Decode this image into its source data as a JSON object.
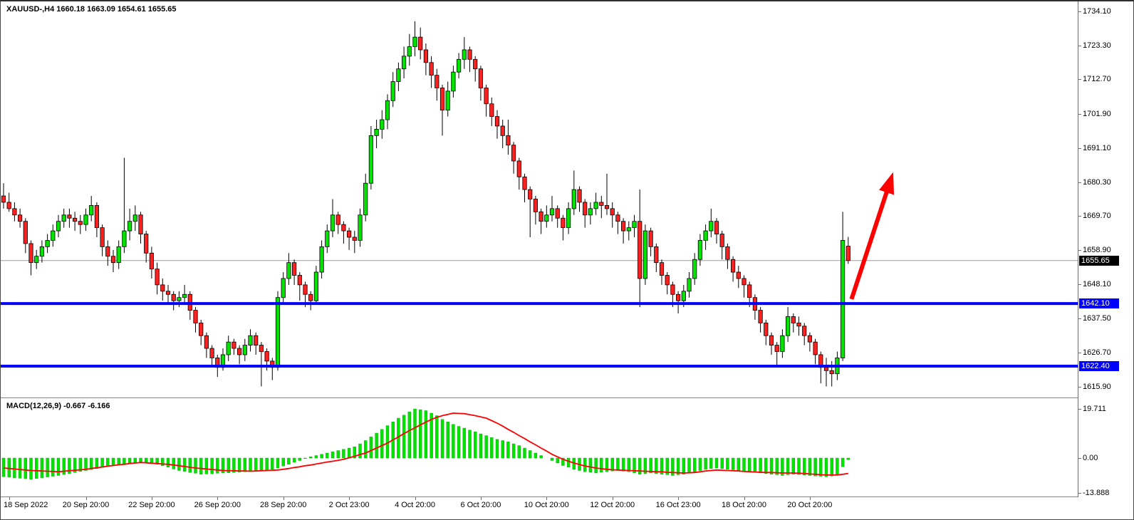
{
  "header": {
    "symbol_readout": "XAUUSD-,H4 1660.18 1663.09 1654.61 1655.65"
  },
  "macd_panel": {
    "readout": "MACD(12,26,9) -0.667 -6.166"
  },
  "colors": {
    "bull": "#00E400",
    "bear": "#FF2020",
    "wick": "#000000",
    "histogram": "#00E400",
    "histogram_edge": "#00A000",
    "signal_line": "#FF0000",
    "level_line": "#0000FF",
    "current_line": "#9C9C9C",
    "current_tag_bg": "#000000",
    "level_tag_bg": "#0000FF",
    "axis_text": "#000000"
  },
  "chart_data": {
    "type": "candlestick",
    "title": "XAUUSD- H4",
    "ylim": [
      1615.9,
      1734.1
    ],
    "yticks": [
      "1734.10",
      "1723.30",
      "1712.70",
      "1701.90",
      "1691.10",
      "1680.30",
      "1669.70",
      "1658.90",
      "1648.10",
      "1637.50",
      "1626.70",
      "1615.90"
    ],
    "time_ticks": [
      {
        "label": "18 Sep 2022",
        "bar": 1
      },
      {
        "label": "20 Sep 20:00",
        "bar": 15
      },
      {
        "label": "22 Sep 20:00",
        "bar": 27
      },
      {
        "label": "26 Sep 20:00",
        "bar": 39
      },
      {
        "label": "28 Sep 20:00",
        "bar": 51
      },
      {
        "label": "2 Oct 23:00",
        "bar": 63
      },
      {
        "label": "4 Oct 20:00",
        "bar": 75
      },
      {
        "label": "6 Oct 20:00",
        "bar": 87
      },
      {
        "label": "10 Oct 20:00",
        "bar": 99
      },
      {
        "label": "12 Oct 20:00",
        "bar": 111
      },
      {
        "label": "16 Oct 23:00",
        "bar": 123
      },
      {
        "label": "18 Oct 20:00",
        "bar": 135
      },
      {
        "label": "20 Oct 20:00",
        "bar": 147
      }
    ],
    "candles": [
      [
        1676,
        1680,
        1672,
        1674
      ],
      [
        1674,
        1677,
        1671,
        1672
      ],
      [
        1672,
        1674,
        1668,
        1670
      ],
      [
        1670,
        1672,
        1666,
        1668
      ],
      [
        1668,
        1669,
        1658,
        1661
      ],
      [
        1661,
        1662,
        1651,
        1655
      ],
      [
        1655,
        1659,
        1653,
        1657
      ],
      [
        1657,
        1662,
        1655,
        1660
      ],
      [
        1660,
        1664,
        1658,
        1662
      ],
      [
        1662,
        1667,
        1660,
        1665
      ],
      [
        1665,
        1670,
        1663,
        1668
      ],
      [
        1668,
        1672,
        1666,
        1670
      ],
      [
        1670,
        1672,
        1666,
        1669
      ],
      [
        1669,
        1671,
        1665,
        1668
      ],
      [
        1668,
        1670,
        1664,
        1667
      ],
      [
        1667,
        1672,
        1665,
        1670
      ],
      [
        1670,
        1676,
        1668,
        1673
      ],
      [
        1673,
        1674,
        1663,
        1666
      ],
      [
        1666,
        1667,
        1657,
        1660
      ],
      [
        1660,
        1662,
        1654,
        1657
      ],
      [
        1657,
        1659,
        1652,
        1655
      ],
      [
        1655,
        1662,
        1653,
        1660
      ],
      [
        1660,
        1688,
        1658,
        1665
      ],
      [
        1665,
        1672,
        1662,
        1668
      ],
      [
        1668,
        1673,
        1665,
        1670
      ],
      [
        1670,
        1671,
        1661,
        1664
      ],
      [
        1664,
        1665,
        1655,
        1658
      ],
      [
        1658,
        1660,
        1650,
        1653
      ],
      [
        1653,
        1655,
        1645,
        1648
      ],
      [
        1648,
        1650,
        1643,
        1646
      ],
      [
        1646,
        1648,
        1642,
        1645
      ],
      [
        1645,
        1646,
        1640,
        1643
      ],
      [
        1643,
        1646,
        1641,
        1644
      ],
      [
        1644,
        1648,
        1642,
        1645
      ],
      [
        1645,
        1646,
        1637,
        1640
      ],
      [
        1640,
        1641,
        1633,
        1636
      ],
      [
        1636,
        1637,
        1629,
        1632
      ],
      [
        1632,
        1633,
        1625,
        1628
      ],
      [
        1628,
        1629,
        1622,
        1625
      ],
      [
        1625,
        1626,
        1619,
        1622
      ],
      [
        1622,
        1628,
        1621,
        1626
      ],
      [
        1626,
        1632,
        1624,
        1630
      ],
      [
        1630,
        1631,
        1626,
        1628
      ],
      [
        1628,
        1629,
        1623,
        1626
      ],
      [
        1626,
        1631,
        1624,
        1629
      ],
      [
        1629,
        1634,
        1627,
        1632
      ],
      [
        1632,
        1633,
        1626,
        1629
      ],
      [
        1629,
        1630,
        1616,
        1627
      ],
      [
        1627,
        1628,
        1621,
        1624
      ],
      [
        1624,
        1625,
        1618,
        1622
      ],
      [
        1622,
        1646,
        1621,
        1644
      ],
      [
        1644,
        1652,
        1642,
        1650
      ],
      [
        1650,
        1658,
        1648,
        1655
      ],
      [
        1655,
        1656,
        1648,
        1651
      ],
      [
        1651,
        1652,
        1643,
        1648
      ],
      [
        1648,
        1649,
        1641,
        1645
      ],
      [
        1645,
        1646,
        1640,
        1643
      ],
      [
        1643,
        1654,
        1642,
        1652
      ],
      [
        1652,
        1662,
        1650,
        1660
      ],
      [
        1660,
        1667,
        1658,
        1665
      ],
      [
        1665,
        1675,
        1663,
        1670
      ],
      [
        1670,
        1671,
        1664,
        1667
      ],
      [
        1667,
        1668,
        1661,
        1665
      ],
      [
        1665,
        1666,
        1659,
        1663
      ],
      [
        1663,
        1665,
        1658,
        1662
      ],
      [
        1662,
        1672,
        1660,
        1670
      ],
      [
        1670,
        1683,
        1668,
        1680
      ],
      [
        1680,
        1698,
        1678,
        1695
      ],
      [
        1695,
        1700,
        1691,
        1697
      ],
      [
        1697,
        1703,
        1694,
        1700
      ],
      [
        1700,
        1708,
        1697,
        1706
      ],
      [
        1706,
        1715,
        1704,
        1712
      ],
      [
        1712,
        1718,
        1709,
        1716
      ],
      [
        1716,
        1723,
        1713,
        1720
      ],
      [
        1720,
        1727,
        1717,
        1723
      ],
      [
        1723,
        1731,
        1720,
        1726
      ],
      [
        1726,
        1729,
        1719,
        1722
      ],
      [
        1722,
        1724,
        1714,
        1718
      ],
      [
        1718,
        1720,
        1710,
        1714
      ],
      [
        1714,
        1716,
        1706,
        1710
      ],
      [
        1710,
        1711,
        1695,
        1703
      ],
      [
        1703,
        1712,
        1701,
        1709
      ],
      [
        1709,
        1717,
        1707,
        1715
      ],
      [
        1715,
        1721,
        1713,
        1719
      ],
      [
        1719,
        1726,
        1716,
        1722
      ],
      [
        1722,
        1723,
        1715,
        1719
      ],
      [
        1719,
        1720,
        1712,
        1716
      ],
      [
        1716,
        1717,
        1706,
        1710
      ],
      [
        1710,
        1711,
        1701,
        1705
      ],
      [
        1705,
        1707,
        1698,
        1701
      ],
      [
        1701,
        1703,
        1694,
        1698
      ],
      [
        1698,
        1700,
        1691,
        1695
      ],
      [
        1695,
        1700,
        1689,
        1692
      ],
      [
        1692,
        1693,
        1683,
        1687
      ],
      [
        1687,
        1688,
        1678,
        1682
      ],
      [
        1682,
        1683,
        1674,
        1678
      ],
      [
        1678,
        1679,
        1663,
        1675
      ],
      [
        1675,
        1676,
        1667,
        1671
      ],
      [
        1671,
        1672,
        1664,
        1668
      ],
      [
        1668,
        1673,
        1666,
        1670
      ],
      [
        1670,
        1676,
        1668,
        1672
      ],
      [
        1672,
        1673,
        1666,
        1669
      ],
      [
        1669,
        1670,
        1662,
        1666
      ],
      [
        1666,
        1674,
        1664,
        1672
      ],
      [
        1672,
        1684,
        1670,
        1678
      ],
      [
        1678,
        1679,
        1671,
        1674
      ],
      [
        1674,
        1675,
        1666,
        1670
      ],
      [
        1670,
        1674,
        1667,
        1672
      ],
      [
        1672,
        1677,
        1670,
        1674
      ],
      [
        1674,
        1676,
        1669,
        1673
      ],
      [
        1673,
        1683,
        1670,
        1672
      ],
      [
        1672,
        1674,
        1666,
        1670
      ],
      [
        1670,
        1671,
        1664,
        1668
      ],
      [
        1668,
        1669,
        1661,
        1665
      ],
      [
        1665,
        1668,
        1662,
        1666
      ],
      [
        1666,
        1670,
        1663,
        1668
      ],
      [
        1668,
        1678,
        1641,
        1650
      ],
      [
        1650,
        1667,
        1648,
        1665
      ],
      [
        1665,
        1666,
        1657,
        1660
      ],
      [
        1660,
        1661,
        1652,
        1655
      ],
      [
        1655,
        1656,
        1648,
        1651
      ],
      [
        1651,
        1652,
        1645,
        1648
      ],
      [
        1648,
        1649,
        1641,
        1645
      ],
      [
        1645,
        1646,
        1639,
        1643
      ],
      [
        1643,
        1648,
        1641,
        1646
      ],
      [
        1646,
        1652,
        1644,
        1650
      ],
      [
        1650,
        1658,
        1648,
        1656
      ],
      [
        1656,
        1664,
        1654,
        1662
      ],
      [
        1662,
        1667,
        1659,
        1665
      ],
      [
        1665,
        1672,
        1663,
        1668
      ],
      [
        1668,
        1669,
        1661,
        1664
      ],
      [
        1664,
        1665,
        1656,
        1660
      ],
      [
        1660,
        1661,
        1653,
        1656
      ],
      [
        1656,
        1657,
        1649,
        1652
      ],
      [
        1652,
        1654,
        1647,
        1650
      ],
      [
        1650,
        1651,
        1644,
        1648
      ],
      [
        1648,
        1649,
        1641,
        1644
      ],
      [
        1644,
        1645,
        1637,
        1640
      ],
      [
        1640,
        1641,
        1633,
        1636
      ],
      [
        1636,
        1637,
        1629,
        1632
      ],
      [
        1632,
        1633,
        1626,
        1629
      ],
      [
        1629,
        1630,
        1622,
        1627
      ],
      [
        1627,
        1634,
        1625,
        1632
      ],
      [
        1632,
        1641,
        1630,
        1638
      ],
      [
        1638,
        1639,
        1633,
        1636
      ],
      [
        1636,
        1638,
        1632,
        1635
      ],
      [
        1635,
        1636,
        1629,
        1632
      ],
      [
        1632,
        1633,
        1627,
        1630
      ],
      [
        1630,
        1631,
        1623,
        1626
      ],
      [
        1626,
        1627,
        1617,
        1622
      ],
      [
        1622,
        1625,
        1616,
        1621
      ],
      [
        1621,
        1624,
        1616,
        1620
      ],
      [
        1620,
        1627,
        1618,
        1625
      ],
      [
        1625,
        1671,
        1624,
        1662
      ],
      [
        1660.18,
        1663.09,
        1654.61,
        1655.65
      ]
    ],
    "levels": [
      {
        "price": 1642.1,
        "label": "1642.10"
      },
      {
        "price": 1622.4,
        "label": "1622.40"
      }
    ],
    "current_price": {
      "price": 1655.65,
      "label": "1655.65"
    },
    "arrow": {
      "from_bar": 154.6,
      "from_price": 1643.5,
      "to_bar": 162.2,
      "to_price": 1683.5
    },
    "macd": {
      "name": "MACD",
      "params": "(12,26,9)",
      "value": -0.667,
      "signal_value": -6.166,
      "ylim": [
        -13.888,
        19.711
      ],
      "yticks": [
        "19.711",
        "0.00",
        "-13.888"
      ],
      "histogram": [
        -7.5,
        -7.7,
        -7.9,
        -8.1,
        -8.3,
        -8.5,
        -8.2,
        -7.9,
        -7.6,
        -7.3,
        -7.0,
        -6.6,
        -6.2,
        -5.8,
        -5.4,
        -5.0,
        -4.6,
        -4.2,
        -3.8,
        -3.4,
        -3.0,
        -2.7,
        -2.4,
        -2.1,
        -1.8,
        -1.5,
        -1.8,
        -2.1,
        -2.5,
        -3.1,
        -3.7,
        -4.4,
        -5.0,
        -5.4,
        -5.8,
        -6.1,
        -6.5,
        -6.4,
        -6.3,
        -6.1,
        -6.0,
        -5.9,
        -5.8,
        -5.6,
        -5.5,
        -5.4,
        -5.3,
        -5.1,
        -5.0,
        -4.5,
        -4.0,
        -3.2,
        -2.5,
        -1.7,
        -1.0,
        -0.2,
        0.5,
        1.0,
        1.5,
        2.0,
        2.5,
        3.0,
        3.5,
        4.0,
        4.5,
        5.7,
        7.0,
        8.5,
        10.0,
        11.5,
        13.0,
        14.5,
        16.0,
        17.2,
        18.5,
        19.7,
        19.4,
        19.0,
        18.0,
        17.0,
        15.5,
        14.5,
        13.5,
        12.7,
        12.0,
        11.2,
        10.5,
        9.7,
        9.0,
        8.2,
        7.5,
        7.0,
        6.5,
        5.7,
        5.0,
        4.0,
        3.0,
        2.0,
        1.0,
        0.1,
        -1.0,
        -2.0,
        -3.0,
        -3.7,
        -4.5,
        -5.0,
        -5.5,
        -5.7,
        -6.0,
        -5.7,
        -5.5,
        -5.2,
        -5.0,
        -5.2,
        -5.5,
        -6.0,
        -6.5,
        -6.2,
        -6.0,
        -6.2,
        -6.5,
        -6.7,
        -7.0,
        -6.7,
        -6.5,
        -6.0,
        -5.5,
        -5.0,
        -4.5,
        -4.2,
        -4.0,
        -4.2,
        -4.5,
        -4.7,
        -5.0,
        -5.2,
        -5.5,
        -5.7,
        -6.0,
        -6.2,
        -6.5,
        -6.7,
        -7.0,
        -6.7,
        -6.5,
        -6.6,
        -6.8,
        -7.0,
        -7.2,
        -7.3,
        -7.5,
        -7.2,
        -6.5,
        -3.5,
        -0.667
      ],
      "signal": [
        -4.0,
        -4.2,
        -4.4,
        -4.6,
        -4.8,
        -5.0,
        -5.1,
        -5.2,
        -5.3,
        -5.4,
        -5.5,
        -5.3,
        -5.1,
        -4.9,
        -4.7,
        -4.5,
        -4.2,
        -3.9,
        -3.6,
        -3.3,
        -3.0,
        -2.7,
        -2.5,
        -2.2,
        -2.0,
        -1.8,
        -1.9,
        -2.1,
        -2.2,
        -2.4,
        -2.5,
        -2.8,
        -3.1,
        -3.4,
        -3.7,
        -4.0,
        -4.2,
        -4.4,
        -4.6,
        -4.8,
        -5.0,
        -5.1,
        -5.1,
        -5.2,
        -5.2,
        -5.3,
        -5.2,
        -5.1,
        -5.0,
        -4.9,
        -4.8,
        -4.5,
        -4.2,
        -3.8,
        -3.5,
        -3.1,
        -2.8,
        -2.4,
        -2.0,
        -1.6,
        -1.3,
        -0.9,
        -0.5,
        0.1,
        0.7,
        1.4,
        2.0,
        3.0,
        4.0,
        5.0,
        6.0,
        7.3,
        8.5,
        9.8,
        11.0,
        12.1,
        13.3,
        14.4,
        15.5,
        16.3,
        17.0,
        17.5,
        18.0,
        17.9,
        17.8,
        17.4,
        17.0,
        16.5,
        16.0,
        15.0,
        14.0,
        12.8,
        11.5,
        10.3,
        9.0,
        7.8,
        6.5,
        5.3,
        4.0,
        2.8,
        1.5,
        0.5,
        -0.5,
        -1.3,
        -2.0,
        -2.6,
        -3.2,
        -3.6,
        -4.0,
        -4.3,
        -4.5,
        -4.7,
        -4.8,
        -4.9,
        -5.0,
        -5.1,
        -5.2,
        -5.3,
        -5.4,
        -5.5,
        -5.5,
        -5.7,
        -5.8,
        -5.9,
        -6.0,
        -5.9,
        -5.8,
        -5.5,
        -5.2,
        -5.0,
        -4.8,
        -4.9,
        -5.0,
        -5.1,
        -5.2,
        -5.4,
        -5.5,
        -5.6,
        -5.7,
        -5.8,
        -5.8,
        -5.9,
        -6.0,
        -6.0,
        -6.0,
        -6.1,
        -6.2,
        -6.4,
        -6.5,
        -6.7,
        -6.8,
        -6.8,
        -6.8,
        -6.5,
        -6.166
      ]
    }
  }
}
